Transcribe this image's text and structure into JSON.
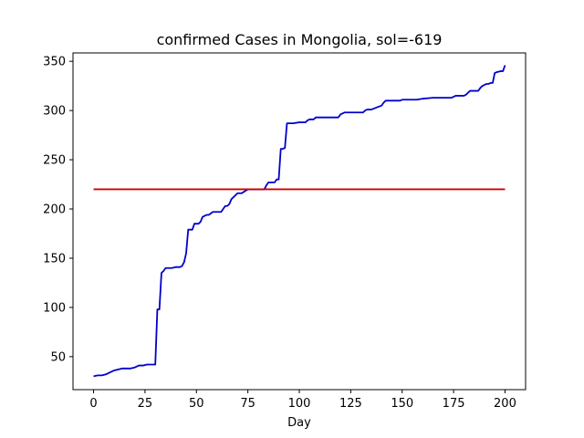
{
  "chart_data": {
    "type": "line",
    "title": "confirmed Cases in Mongolia, sol=-619",
    "xlabel": "Day",
    "ylabel": "",
    "xlim": [
      -10,
      210
    ],
    "ylim": [
      16.5,
      358.5
    ],
    "xticks": [
      0,
      25,
      50,
      75,
      100,
      125,
      150,
      175,
      200
    ],
    "yticks": [
      50,
      100,
      150,
      200,
      250,
      300,
      350
    ],
    "grid": false,
    "series": [
      {
        "color": "#0000cc",
        "x": [
          0,
          2,
          4,
          6,
          8,
          10,
          12,
          14,
          16,
          18,
          20,
          22,
          24,
          26,
          28,
          30,
          31,
          32,
          33,
          34,
          35,
          36,
          38,
          40,
          42,
          43,
          44,
          45,
          46,
          48,
          49,
          50,
          51,
          52,
          53,
          55,
          56,
          58,
          60,
          62,
          63,
          64,
          65,
          66,
          67,
          70,
          72,
          75,
          80,
          83,
          84,
          85,
          86,
          87,
          88,
          89,
          90,
          91,
          92,
          93,
          94,
          95,
          96,
          97,
          100,
          101,
          102,
          103,
          104,
          105,
          106,
          107,
          108,
          109,
          110,
          112,
          115,
          119,
          120,
          121,
          122,
          123,
          126,
          127,
          128,
          129,
          130,
          131,
          132,
          133,
          134,
          135,
          140,
          141,
          142,
          143,
          144,
          145,
          148,
          149,
          150,
          155,
          156,
          157,
          160,
          165,
          170,
          172,
          173,
          174,
          175,
          176,
          178,
          180,
          181,
          182,
          183,
          184,
          186,
          187,
          188,
          189,
          190,
          191,
          192,
          193,
          194,
          195,
          196,
          198,
          199,
          200
        ],
        "y": [
          30,
          31,
          31,
          32,
          34,
          36,
          37,
          38,
          38,
          38,
          39,
          41,
          41,
          42,
          42,
          42,
          98,
          98,
          135,
          137,
          140,
          140,
          140,
          141,
          141,
          142,
          146,
          155,
          179,
          179,
          185,
          185,
          185,
          187,
          192,
          194,
          194,
          197,
          197,
          197,
          200,
          203,
          203,
          205,
          210,
          216,
          216,
          220,
          220,
          220,
          224,
          227,
          227,
          227,
          227,
          230,
          230,
          261,
          261,
          262,
          287,
          287,
          287,
          287,
          288,
          288,
          288,
          288,
          290,
          291,
          291,
          291,
          293,
          293,
          293,
          293,
          293,
          293,
          296,
          297,
          298,
          298,
          298,
          298,
          298,
          298,
          298,
          298,
          300,
          301,
          301,
          301,
          305,
          308,
          310,
          310,
          310,
          310,
          310,
          310,
          311,
          311,
          311,
          311,
          312,
          313,
          313,
          313,
          313,
          313,
          314,
          315,
          315,
          315,
          316,
          318,
          320,
          320,
          320,
          320,
          323,
          325,
          326,
          327,
          327,
          328,
          328,
          338,
          339,
          340,
          340,
          346
        ]
      },
      {
        "color": "#cc0000",
        "x": [
          0,
          200
        ],
        "y": [
          220,
          220
        ]
      }
    ]
  }
}
